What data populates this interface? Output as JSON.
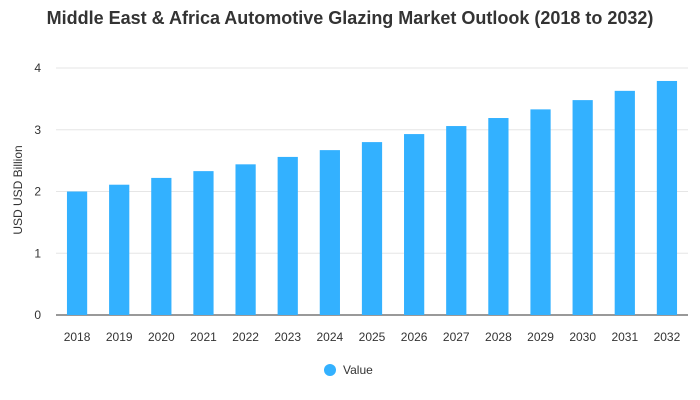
{
  "chart_data": {
    "type": "bar",
    "title": "Middle East & Africa Automotive Glazing Market Outlook (2018 to 2032)",
    "xlabel": "",
    "ylabel": "USD USD Billion",
    "categories": [
      "2018",
      "2019",
      "2020",
      "2021",
      "2022",
      "2023",
      "2024",
      "2025",
      "2026",
      "2027",
      "2028",
      "2029",
      "2030",
      "2031",
      "2032"
    ],
    "series": [
      {
        "name": "Value",
        "values": [
          2.0,
          2.11,
          2.22,
          2.33,
          2.44,
          2.56,
          2.67,
          2.8,
          2.93,
          3.06,
          3.19,
          3.33,
          3.48,
          3.63,
          3.79
        ]
      }
    ],
    "ylim": [
      0,
      4
    ],
    "yticks": [
      0,
      1,
      2,
      3,
      4
    ],
    "grid": true,
    "legend": "bottom-center",
    "colors": {
      "bar": "#33b1ff",
      "grid": "#e6e6e6",
      "axis": "#333333"
    }
  }
}
